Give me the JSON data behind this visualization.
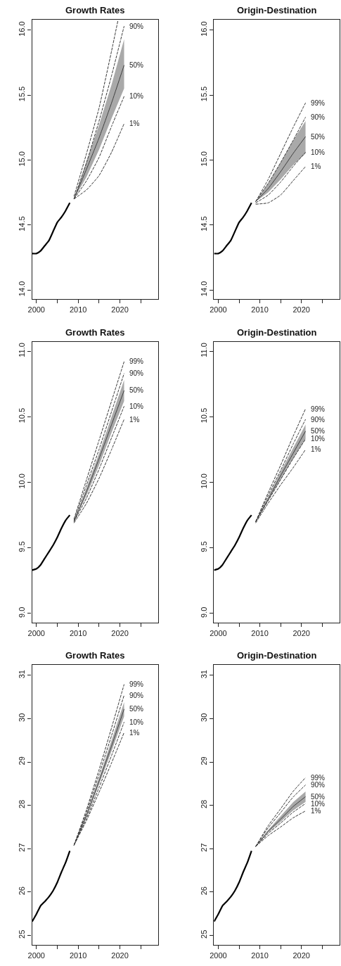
{
  "chart_data": [
    {
      "type": "line",
      "title": "Growth Rates",
      "xlim": [
        1998.95,
        2029.2
      ],
      "xticks": [
        2000,
        {
          "value": 2005,
          "label": null
        },
        2010,
        {
          "value": 2015,
          "label": null
        },
        2020,
        {
          "value": 2025,
          "label": null
        }
      ],
      "ylim": [
        13.93,
        16.08
      ],
      "yticks": [
        {
          "value": 14,
          "label": "14.0"
        },
        14.5,
        {
          "value": 15,
          "label": "15.0"
        },
        15.5,
        {
          "value": 16,
          "label": "16.0"
        }
      ],
      "grid": false,
      "legend": false,
      "marker": "none",
      "series": [
        {
          "color": "#000000",
          "line_style": "solid",
          "x": [
            1999,
            2000,
            2001,
            2002,
            2003,
            2004,
            2005,
            2006,
            2007,
            2008
          ],
          "values": [
            14.28,
            14.28,
            14.3,
            14.34,
            14.38,
            14.45,
            14.52,
            14.56,
            14.61,
            14.67
          ]
        },
        {
          "color": "#333333",
          "line_style": "dashed",
          "x": [
            2009,
            2012,
            2015,
            2018,
            2019.5
          ],
          "values": [
            14.72,
            15.05,
            15.4,
            15.84,
            16.07
          ]
        },
        {
          "name": "90%",
          "color": "#333333",
          "line_style": "dashed",
          "x": [
            2009,
            2012,
            2015,
            2018,
            2021
          ],
          "values": [
            14.7,
            14.98,
            15.3,
            15.65,
            16.03
          ]
        },
        {
          "name": "50%",
          "color": "#404040",
          "line_style": "solid",
          "x": [
            2009,
            2012,
            2015,
            2018,
            2021
          ],
          "values": [
            14.7,
            14.93,
            15.17,
            15.44,
            15.73
          ],
          "lower": [
            14.7,
            14.87,
            15.08,
            15.32,
            15.55
          ],
          "upper": [
            14.7,
            14.99,
            15.27,
            15.58,
            15.93
          ]
        },
        {
          "name": "10%",
          "color": "#333333",
          "line_style": "dashed",
          "x": [
            2009,
            2012,
            2015,
            2018,
            2021
          ],
          "values": [
            14.7,
            14.84,
            15.02,
            15.26,
            15.49
          ]
        },
        {
          "name": "1%",
          "color": "#333333",
          "line_style": "dashed",
          "x": [
            2009,
            2012,
            2015,
            2018,
            2021
          ],
          "values": [
            14.7,
            14.77,
            14.88,
            15.06,
            15.28
          ]
        }
      ]
    },
    {
      "type": "line",
      "title": "Origin-Destination",
      "xlim": [
        1998.95,
        2029.2
      ],
      "xticks": [
        2000,
        {
          "value": 2005,
          "label": null
        },
        2010,
        {
          "value": 2015,
          "label": null
        },
        2020,
        {
          "value": 2025,
          "label": null
        }
      ],
      "ylim": [
        13.93,
        16.08
      ],
      "yticks": [
        {
          "value": 14,
          "label": "14.0"
        },
        14.5,
        {
          "value": 15,
          "label": "15.0"
        },
        15.5,
        {
          "value": 16,
          "label": "16.0"
        }
      ],
      "grid": false,
      "legend": false,
      "marker": "none",
      "series": [
        {
          "color": "#000000",
          "line_style": "solid",
          "x": [
            1999,
            2000,
            2001,
            2002,
            2003,
            2004,
            2005,
            2006,
            2007,
            2008
          ],
          "values": [
            14.28,
            14.28,
            14.3,
            14.34,
            14.38,
            14.45,
            14.52,
            14.56,
            14.61,
            14.67
          ]
        },
        {
          "name": "99%",
          "color": "#333333",
          "line_style": "dashed",
          "x": [
            2009,
            2012,
            2015,
            2018,
            2021
          ],
          "values": [
            14.68,
            14.85,
            15.05,
            15.25,
            15.44
          ]
        },
        {
          "name": "90%",
          "color": "#333333",
          "line_style": "dashed",
          "x": [
            2009,
            2012,
            2015,
            2018,
            2021
          ],
          "values": [
            14.68,
            14.82,
            14.98,
            15.15,
            15.33
          ]
        },
        {
          "name": "50%",
          "color": "#404040",
          "line_style": "solid",
          "x": [
            2009,
            2012,
            2015,
            2018,
            2021
          ],
          "values": [
            14.68,
            14.78,
            14.91,
            15.05,
            15.18
          ],
          "lower": [
            14.68,
            14.75,
            14.85,
            14.96,
            15.05
          ],
          "upper": [
            14.68,
            14.82,
            14.98,
            15.15,
            15.3
          ]
        },
        {
          "name": "10%",
          "color": "#333333",
          "line_style": "dashed",
          "x": [
            2009,
            2012,
            2015,
            2018,
            2021
          ],
          "values": [
            14.67,
            14.73,
            14.83,
            14.95,
            15.06
          ]
        },
        {
          "name": "1%",
          "color": "#333333",
          "line_style": "dashed",
          "x": [
            2009,
            2012,
            2015,
            2018,
            2021
          ],
          "values": [
            14.66,
            14.67,
            14.73,
            14.84,
            14.95
          ]
        }
      ]
    },
    {
      "type": "line",
      "title": "Growth Rates",
      "xlim": [
        1998.95,
        2029.2
      ],
      "xticks": [
        2000,
        {
          "value": 2005,
          "label": null
        },
        2010,
        {
          "value": 2015,
          "label": null
        },
        2020,
        {
          "value": 2025,
          "label": null
        }
      ],
      "ylim": [
        8.93,
        11.07
      ],
      "yticks": [
        {
          "value": 9,
          "label": "9.0"
        },
        9.5,
        {
          "value": 10,
          "label": "10.0"
        },
        10.5,
        {
          "value": 11,
          "label": "11.0"
        }
      ],
      "grid": false,
      "legend": false,
      "marker": "none",
      "series": [
        {
          "color": "#000000",
          "line_style": "solid",
          "x": [
            1999,
            2000,
            2001,
            2002,
            2003,
            2004,
            2005,
            2006,
            2007,
            2008
          ],
          "values": [
            9.33,
            9.34,
            9.37,
            9.42,
            9.47,
            9.52,
            9.58,
            9.65,
            9.71,
            9.75
          ]
        },
        {
          "name": "99%",
          "color": "#333333",
          "line_style": "dashed",
          "x": [
            2009,
            2012,
            2015,
            2018,
            2021
          ],
          "values": [
            9.72,
            10.02,
            10.32,
            10.62,
            10.92
          ]
        },
        {
          "name": "90%",
          "color": "#333333",
          "line_style": "dashed",
          "x": [
            2009,
            2012,
            2015,
            2018,
            2021
          ],
          "values": [
            9.71,
            9.98,
            10.25,
            10.54,
            10.83
          ]
        },
        {
          "name": "50%",
          "color": "#404040",
          "line_style": "solid",
          "x": [
            2009,
            2012,
            2015,
            2018,
            2021
          ],
          "values": [
            9.7,
            9.93,
            10.18,
            10.44,
            10.7
          ],
          "lower": [
            9.7,
            9.9,
            10.13,
            10.38,
            10.62
          ],
          "upper": [
            9.7,
            9.96,
            10.22,
            10.5,
            10.78
          ]
        },
        {
          "name": "10%",
          "color": "#333333",
          "line_style": "dashed",
          "x": [
            2009,
            2012,
            2015,
            2018,
            2021
          ],
          "values": [
            9.7,
            9.88,
            10.1,
            10.34,
            10.58
          ]
        },
        {
          "name": "1%",
          "color": "#333333",
          "line_style": "dashed",
          "x": [
            2009,
            2012,
            2015,
            2018,
            2021
          ],
          "values": [
            9.69,
            9.84,
            10.03,
            10.25,
            10.48
          ]
        }
      ]
    },
    {
      "type": "line",
      "title": "Origin-Destination",
      "xlim": [
        1998.95,
        2029.2
      ],
      "xticks": [
        2000,
        {
          "value": 2005,
          "label": null
        },
        2010,
        {
          "value": 2015,
          "label": null
        },
        2020,
        {
          "value": 2025,
          "label": null
        }
      ],
      "ylim": [
        8.93,
        11.07
      ],
      "yticks": [
        {
          "value": 9,
          "label": "9.0"
        },
        9.5,
        {
          "value": 10,
          "label": "10.0"
        },
        10.5,
        {
          "value": 11,
          "label": "11.0"
        }
      ],
      "grid": false,
      "legend": false,
      "marker": "none",
      "series": [
        {
          "color": "#000000",
          "line_style": "solid",
          "x": [
            1999,
            2000,
            2001,
            2002,
            2003,
            2004,
            2005,
            2006,
            2007,
            2008
          ],
          "values": [
            9.33,
            9.34,
            9.37,
            9.42,
            9.47,
            9.52,
            9.58,
            9.65,
            9.71,
            9.75
          ]
        },
        {
          "name": "99%",
          "color": "#333333",
          "line_style": "dashed",
          "x": [
            2009,
            2012,
            2015,
            2018,
            2021
          ],
          "values": [
            9.7,
            9.92,
            10.13,
            10.35,
            10.56
          ]
        },
        {
          "name": "90%",
          "color": "#333333",
          "line_style": "dashed",
          "x": [
            2009,
            2012,
            2015,
            2018,
            2021
          ],
          "values": [
            9.7,
            9.9,
            10.09,
            10.29,
            10.48
          ]
        },
        {
          "name": "50%",
          "color": "#404040",
          "line_style": "solid",
          "x": [
            2009,
            2012,
            2015,
            2018,
            2021
          ],
          "values": [
            9.7,
            9.87,
            10.05,
            10.22,
            10.39
          ],
          "lower": [
            9.7,
            9.86,
            10.02,
            10.18,
            10.33
          ],
          "upper": [
            9.7,
            9.89,
            10.08,
            10.26,
            10.44
          ]
        },
        {
          "name": "10%",
          "color": "#333333",
          "line_style": "dashed",
          "x": [
            2009,
            2012,
            2015,
            2018,
            2021
          ],
          "values": [
            9.7,
            9.86,
            10.02,
            10.18,
            10.33
          ]
        },
        {
          "name": "1%",
          "color": "#333333",
          "line_style": "dashed",
          "x": [
            2009,
            2012,
            2015,
            2018,
            2021
          ],
          "values": [
            9.69,
            9.84,
            9.98,
            10.11,
            10.25
          ]
        }
      ]
    },
    {
      "type": "line",
      "title": "Growth Rates",
      "xlim": [
        1998.95,
        2029.2
      ],
      "xticks": [
        2000,
        {
          "value": 2005,
          "label": null
        },
        2010,
        {
          "value": 2015,
          "label": null
        },
        2020,
        {
          "value": 2025,
          "label": null
        }
      ],
      "ylim": [
        24.78,
        31.24
      ],
      "yticks": [
        25,
        26,
        27,
        28,
        29,
        30,
        31
      ],
      "grid": false,
      "legend": false,
      "marker": "none",
      "series": [
        {
          "color": "#000000",
          "line_style": "solid",
          "x": [
            1999,
            2000,
            2001,
            2002,
            2003,
            2004,
            2005,
            2006,
            2007,
            2008
          ],
          "values": [
            25.32,
            25.49,
            25.68,
            25.78,
            25.89,
            26.03,
            26.22,
            26.46,
            26.68,
            26.95
          ]
        },
        {
          "name": "99%",
          "color": "#333333",
          "line_style": "dashed",
          "x": [
            2009,
            2012,
            2015,
            2018,
            2021
          ],
          "values": [
            27.08,
            27.9,
            28.82,
            29.79,
            30.79
          ]
        },
        {
          "name": "90%",
          "color": "#333333",
          "line_style": "dashed",
          "x": [
            2009,
            2012,
            2015,
            2018,
            2021
          ],
          "values": [
            27.08,
            27.84,
            28.71,
            29.61,
            30.54
          ]
        },
        {
          "name": "50%",
          "color": "#404040",
          "line_style": "solid",
          "x": [
            2009,
            2012,
            2015,
            2018,
            2021
          ],
          "values": [
            27.08,
            27.77,
            28.56,
            29.37,
            30.22
          ],
          "lower": [
            27.08,
            27.73,
            28.48,
            29.25,
            30.05
          ],
          "upper": [
            27.08,
            27.81,
            28.64,
            29.5,
            30.38
          ]
        },
        {
          "name": "10%",
          "color": "#333333",
          "line_style": "dashed",
          "x": [
            2009,
            2012,
            2015,
            2018,
            2021
          ],
          "values": [
            27.08,
            27.7,
            28.41,
            29.15,
            29.92
          ]
        },
        {
          "name": "1%",
          "color": "#333333",
          "line_style": "dashed",
          "x": [
            2009,
            2012,
            2015,
            2018,
            2021
          ],
          "values": [
            27.08,
            27.65,
            28.3,
            28.98,
            29.68
          ]
        }
      ]
    },
    {
      "type": "line",
      "title": "Origin-Destination",
      "xlim": [
        1998.95,
        2029.2
      ],
      "xticks": [
        2000,
        {
          "value": 2005,
          "label": null
        },
        2010,
        {
          "value": 2015,
          "label": null
        },
        2020,
        {
          "value": 2025,
          "label": null
        }
      ],
      "ylim": [
        24.78,
        31.24
      ],
      "yticks": [
        25,
        26,
        27,
        28,
        29,
        30,
        31
      ],
      "grid": false,
      "legend": false,
      "marker": "none",
      "series": [
        {
          "color": "#000000",
          "line_style": "solid",
          "x": [
            1999,
            2000,
            2001,
            2002,
            2003,
            2004,
            2005,
            2006,
            2007,
            2008
          ],
          "values": [
            25.32,
            25.49,
            25.68,
            25.78,
            25.89,
            26.03,
            26.22,
            26.46,
            26.68,
            26.95
          ]
        },
        {
          "name": "99%",
          "color": "#333333",
          "line_style": "dashed",
          "x": [
            2009,
            2012,
            2015,
            2018,
            2021
          ],
          "values": [
            27.05,
            27.53,
            27.92,
            28.32,
            28.64
          ]
        },
        {
          "name": "90%",
          "color": "#333333",
          "line_style": "dashed",
          "x": [
            2009,
            2012,
            2015,
            2018,
            2021
          ],
          "values": [
            27.05,
            27.48,
            27.83,
            28.19,
            28.47
          ]
        },
        {
          "name": "50%",
          "color": "#404040",
          "line_style": "solid",
          "x": [
            2009,
            2012,
            2015,
            2018,
            2021
          ],
          "values": [
            27.05,
            27.4,
            27.68,
            27.97,
            28.2
          ],
          "lower": [
            27.05,
            27.37,
            27.62,
            27.88,
            28.08
          ],
          "upper": [
            27.05,
            27.43,
            27.75,
            28.07,
            28.32
          ]
        },
        {
          "name": "10%",
          "color": "#333333",
          "line_style": "dashed",
          "x": [
            2009,
            2012,
            2015,
            2018,
            2021
          ],
          "values": [
            27.05,
            27.35,
            27.59,
            27.84,
            28.04
          ]
        },
        {
          "name": "1%",
          "color": "#333333",
          "line_style": "dashed",
          "x": [
            2009,
            2012,
            2015,
            2018,
            2021
          ],
          "values": [
            27.05,
            27.3,
            27.5,
            27.71,
            27.87
          ]
        }
      ]
    }
  ]
}
